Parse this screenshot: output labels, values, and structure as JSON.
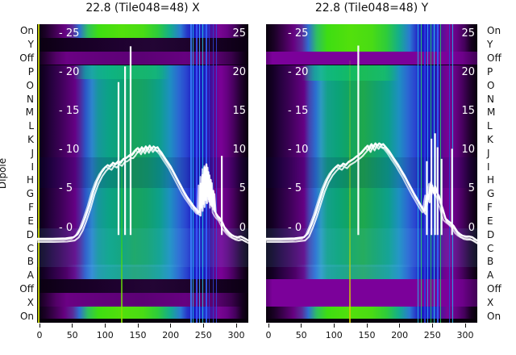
{
  "figure": {
    "panels": [
      {
        "id": "X",
        "title": "22.8 (Tile048=48) X"
      },
      {
        "id": "Y",
        "title": "22.8 (Tile048=48) Y"
      }
    ],
    "y_axis_label": "Dipole",
    "dipole_labels": [
      "On",
      "Y",
      "Off",
      "P",
      "O",
      "N",
      "M",
      "L",
      "K",
      "J",
      "I",
      "H",
      "G",
      "F",
      "E",
      "D",
      "C",
      "B",
      "A",
      "Off",
      "X",
      "On"
    ],
    "inner_ticks_left": [
      "- 25",
      "- 20",
      "- 15",
      "- 10",
      "- 5",
      "- 0"
    ],
    "inner_ticks_right": [
      "25",
      "20",
      "15",
      "10",
      "5",
      "0"
    ],
    "x_tick_labels": [
      "0",
      "50",
      "100",
      "150",
      "200",
      "250",
      "300"
    ]
  },
  "palette": {
    "background": "#ffffff",
    "heat_black": "#08000c",
    "heat_dark_purple": "#230535",
    "heat_purple": "#7a0196",
    "heat_blue": "#2a46d0",
    "heat_teal": "#0ba385",
    "heat_green": "#4ddd10",
    "heat_cyan": "#2d85cc",
    "rfi_streak_blue": "#3366ff",
    "yellow_line": "#cfe000",
    "overlay_line": "#ffffff",
    "text": "#111111"
  },
  "chart_data": [
    {
      "type": "heatmap",
      "title": "22.8 (Tile048=48) X",
      "x_axis": {
        "range": [
          0,
          300
        ],
        "ticks": [
          0,
          50,
          100,
          150,
          200,
          250,
          300
        ]
      },
      "y_categories": [
        "On",
        "Y",
        "Off",
        "P",
        "O",
        "N",
        "M",
        "L",
        "K",
        "J",
        "I",
        "H",
        "G",
        "F",
        "E",
        "D",
        "C",
        "B",
        "A",
        "Off",
        "X",
        "On"
      ],
      "inner_value_axis": {
        "ticks": [
          25,
          20,
          15,
          10,
          5,
          0
        ]
      },
      "color_bands": [
        {
          "rows": "On (top/bottom)",
          "desc": "bright green band x~65-200, purple edges, blue streaks x~235-260"
        },
        {
          "rows": "Y / X",
          "desc": "near-black dark purple"
        },
        {
          "rows": "Off",
          "desc": "purple band, dark at edges"
        },
        {
          "rows": "P..A",
          "desc": "black-purple edge, teal/green center x~90-200, blue x~200-240, blue streaks x~235-262, purple x~265-290, black right edge; yellow line at x~0, green line at x~124"
        }
      ],
      "overlay_line": {
        "name": "bandpass power (white)",
        "points": [
          [
            -4,
            -1.3
          ],
          [
            20,
            -1.3
          ],
          [
            40,
            -1.25
          ],
          [
            52,
            -1.1
          ],
          [
            58,
            -0.7
          ],
          [
            64,
            0.2
          ],
          [
            70,
            1.5
          ],
          [
            76,
            3.0
          ],
          [
            82,
            4.8
          ],
          [
            88,
            6.2
          ],
          [
            94,
            7.2
          ],
          [
            100,
            7.9
          ],
          [
            104,
            8.2
          ],
          [
            108,
            8.0
          ],
          [
            112,
            8.5
          ],
          [
            116,
            8.3
          ],
          [
            120,
            8.7
          ],
          [
            124,
            8.5
          ],
          [
            128,
            9.0
          ],
          [
            132,
            9.1
          ],
          [
            135,
            9.3
          ],
          [
            138,
            9.5
          ],
          [
            141,
            9.5
          ],
          [
            144,
            9.8
          ],
          [
            147,
            10.2
          ],
          [
            150,
            10.4
          ],
          [
            153,
            10.0
          ],
          [
            156,
            10.5
          ],
          [
            159,
            10.1
          ],
          [
            162,
            10.6
          ],
          [
            165,
            10.2
          ],
          [
            168,
            10.7
          ],
          [
            171,
            10.3
          ],
          [
            174,
            10.6
          ],
          [
            177,
            10.4
          ],
          [
            180,
            10.5
          ],
          [
            183,
            10.1
          ],
          [
            186,
            9.8
          ],
          [
            189,
            9.4
          ],
          [
            192,
            9.0
          ],
          [
            196,
            8.5
          ],
          [
            200,
            8.0
          ],
          [
            205,
            7.2
          ],
          [
            210,
            6.4
          ],
          [
            215,
            5.6
          ],
          [
            220,
            4.8
          ],
          [
            225,
            4.1
          ],
          [
            230,
            3.5
          ],
          [
            235,
            2.9
          ],
          [
            239,
            2.5
          ],
          [
            242,
            2.2
          ],
          [
            244,
            2.1
          ],
          [
            245.5,
            5.8
          ],
          [
            247,
            2.7
          ],
          [
            248.5,
            6.9
          ],
          [
            250,
            3.2
          ],
          [
            251.5,
            7.9
          ],
          [
            253,
            3.7
          ],
          [
            254.5,
            8.3
          ],
          [
            256,
            4.2
          ],
          [
            257.5,
            7.3
          ],
          [
            259,
            3.5
          ],
          [
            261,
            6.3
          ],
          [
            263,
            2.9
          ],
          [
            265,
            4.9
          ],
          [
            267,
            2.3
          ],
          [
            269.5,
            1.9
          ],
          [
            272,
            1.6
          ],
          [
            274.5,
            1.4
          ],
          [
            276.5,
            1.2
          ],
          [
            279.5,
            0.7
          ],
          [
            282,
            0.2
          ],
          [
            285,
            -0.1
          ],
          [
            289,
            -0.5
          ],
          [
            293,
            -0.8
          ],
          [
            297,
            -1.0
          ],
          [
            302,
            -1.1
          ],
          [
            307,
            -1.0
          ],
          [
            312,
            -1.2
          ],
          [
            318,
            -1.5
          ]
        ],
        "spikes": [
          [
            120.5,
            18.9
          ],
          [
            130.4,
            20.9
          ],
          [
            139,
            23.5
          ],
          [
            278,
            9.4
          ]
        ]
      }
    },
    {
      "type": "heatmap",
      "title": "22.8 (Tile048=48) Y",
      "x_axis": {
        "range": [
          0,
          300
        ],
        "ticks": [
          0,
          50,
          100,
          150,
          200,
          250,
          300
        ]
      },
      "y_categories": [
        "On",
        "Y",
        "Off",
        "P",
        "O",
        "N",
        "M",
        "L",
        "K",
        "J",
        "I",
        "H",
        "G",
        "F",
        "E",
        "D",
        "C",
        "B",
        "A",
        "Off",
        "X",
        "On"
      ],
      "inner_value_axis": {
        "ticks": [
          25,
          20,
          15,
          10,
          5,
          0
        ]
      },
      "color_bands": [
        {
          "rows": "On, Y (top)",
          "desc": "bright green band"
        },
        {
          "rows": "Off (top)",
          "desc": "full-width purple band"
        },
        {
          "rows": "P..A",
          "desc": "teal/green center, blue streaks with green lines x~230-270, purple then black right edge; yellow-green line at x~123"
        },
        {
          "rows": "Off, X (bottom)",
          "desc": "full-width purple band"
        },
        {
          "rows": "On (bottom)",
          "desc": "bright green band"
        }
      ],
      "overlay_line": {
        "name": "bandpass power (white)",
        "points": [
          [
            -4,
            -1.3
          ],
          [
            20,
            -1.3
          ],
          [
            40,
            -1.25
          ],
          [
            54,
            -1.1
          ],
          [
            60,
            -0.6
          ],
          [
            66,
            0.6
          ],
          [
            72,
            2.0
          ],
          [
            78,
            3.6
          ],
          [
            84,
            5.2
          ],
          [
            90,
            6.4
          ],
          [
            96,
            7.3
          ],
          [
            102,
            7.9
          ],
          [
            106,
            8.2
          ],
          [
            110,
            8.0
          ],
          [
            114,
            8.4
          ],
          [
            118,
            8.2
          ],
          [
            122,
            8.6
          ],
          [
            126,
            8.8
          ],
          [
            130,
            9.0
          ],
          [
            134,
            9.3
          ],
          [
            138,
            9.5
          ],
          [
            142,
            9.8
          ],
          [
            145,
            10.1
          ],
          [
            148,
            10.4
          ],
          [
            151,
            10.7
          ],
          [
            154,
            10.3
          ],
          [
            157,
            10.9
          ],
          [
            160,
            10.5
          ],
          [
            163,
            11.0
          ],
          [
            166,
            10.7
          ],
          [
            169,
            11.0
          ],
          [
            172,
            10.8
          ],
          [
            175,
            10.9
          ],
          [
            178,
            10.6
          ],
          [
            181,
            10.3
          ],
          [
            184,
            10.0
          ],
          [
            187,
            9.6
          ],
          [
            190,
            9.2
          ],
          [
            194,
            8.7
          ],
          [
            198,
            8.2
          ],
          [
            202,
            7.6
          ],
          [
            207,
            6.9
          ],
          [
            212,
            6.1
          ],
          [
            217,
            5.3
          ],
          [
            222,
            4.5
          ],
          [
            227,
            3.8
          ],
          [
            231,
            3.2
          ],
          [
            234,
            2.8
          ],
          [
            236,
            2.5
          ],
          [
            238,
            2.3
          ],
          [
            240,
            3.5
          ],
          [
            242,
            4.5
          ],
          [
            244,
            3.8
          ],
          [
            246,
            5.0
          ],
          [
            248,
            6.0
          ],
          [
            250,
            5.2
          ],
          [
            252,
            4.6
          ],
          [
            254,
            5.5
          ],
          [
            256,
            5.0
          ],
          [
            258,
            4.5
          ],
          [
            260,
            4.2
          ],
          [
            262,
            3.4
          ],
          [
            264,
            3.0
          ],
          [
            266,
            2.4
          ],
          [
            268,
            1.8
          ],
          [
            270,
            1.3
          ],
          [
            274,
            1.0
          ],
          [
            277,
            0.8
          ],
          [
            282,
            0.4
          ],
          [
            285,
            0.0
          ],
          [
            288,
            -0.4
          ],
          [
            292,
            -0.7
          ],
          [
            296,
            -0.9
          ],
          [
            301,
            -1.0
          ],
          [
            306,
            -1.0
          ],
          [
            311,
            -1.1
          ],
          [
            316,
            -1.4
          ],
          [
            322,
            -1.7
          ]
        ],
        "spikes": [
          [
            137,
            23.6
          ],
          [
            241.5,
            8.7
          ],
          [
            248.5,
            11.6
          ],
          [
            254,
            12.3
          ],
          [
            258,
            10.5
          ],
          [
            264,
            9.0
          ],
          [
            280,
            10.3
          ]
        ]
      }
    }
  ]
}
